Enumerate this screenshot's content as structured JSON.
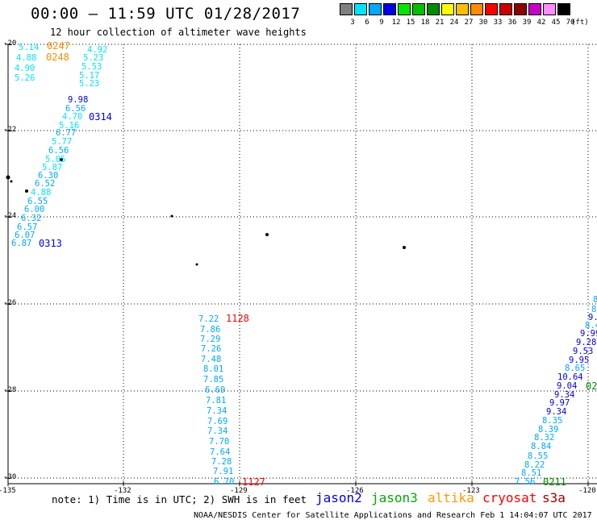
{
  "header": {
    "title": "00:00 — 11:59 UTC 01/28/2017",
    "subtitle": "12 hour collection of altimeter wave heights"
  },
  "color_scale": {
    "labels": [
      "3",
      "6",
      "9",
      "12",
      "15",
      "18",
      "21",
      "24",
      "27",
      "30",
      "33",
      "36",
      "39",
      "42",
      "45",
      "70"
    ],
    "colors": [
      "#7f7f7f",
      "#00e5ff",
      "#00a8ff",
      "#0000e6",
      "#00e600",
      "#00bf00",
      "#008c00",
      "#ffff00",
      "#ffbf00",
      "#ff8c00",
      "#ff0000",
      "#c80000",
      "#8c0000",
      "#c800c8",
      "#ff8cff",
      "#000000"
    ],
    "unit": "(ft)"
  },
  "map": {
    "lat_labels": [
      "-20",
      "-22",
      "-24",
      "-26",
      "-28",
      "-30"
    ],
    "lon_labels": [
      "-135",
      "-132",
      "-129",
      "-126",
      "-123",
      "-120"
    ],
    "tracks": [
      {
        "id": "north-pass",
        "values": [
          {
            "text": "5.14",
            "color": "#00e5ff"
          },
          {
            "text": "4.92",
            "color": "#00e5ff"
          },
          {
            "text": "4.88",
            "color": "#00e5ff"
          },
          {
            "text": "5.23",
            "color": "#00e5ff"
          },
          {
            "text": "4.90",
            "color": "#00e5ff"
          },
          {
            "text": "5.53",
            "color": "#00e5ff"
          },
          {
            "text": "5.26",
            "color": "#00e5ff"
          },
          {
            "text": "5.17",
            "color": "#00e5ff"
          },
          {
            "text": "5.23",
            "color": "#00e5ff"
          }
        ],
        "times": [
          {
            "text": "0247",
            "color": "#ff8c00"
          },
          {
            "text": "0248",
            "color": "#ff8c00"
          }
        ]
      },
      {
        "id": "jason2-0314",
        "values": [
          {
            "text": "9.98",
            "color": "#0000e6"
          },
          {
            "text": "6.56",
            "color": "#00a8ff"
          },
          {
            "text": "4.70",
            "color": "#00e5ff"
          },
          {
            "text": "5.16",
            "color": "#00e5ff"
          },
          {
            "text": "6.77",
            "color": "#00a8ff"
          },
          {
            "text": "5.77",
            "color": "#00e5ff"
          },
          {
            "text": "6.56",
            "color": "#00a8ff"
          },
          {
            "text": "5.05",
            "color": "#00e5ff"
          },
          {
            "text": "5.87",
            "color": "#00e5ff"
          },
          {
            "text": "6.30",
            "color": "#00a8ff"
          },
          {
            "text": "6.52",
            "color": "#00a8ff"
          },
          {
            "text": "4.88",
            "color": "#00e5ff"
          },
          {
            "text": "6.55",
            "color": "#00a8ff"
          },
          {
            "text": "6.00",
            "color": "#00a8ff"
          },
          {
            "text": "6.32",
            "color": "#00a8ff"
          },
          {
            "text": "6.57",
            "color": "#00a8ff"
          },
          {
            "text": "6.07",
            "color": "#00a8ff"
          },
          {
            "text": "6.87",
            "color": "#00a8ff"
          }
        ],
        "times": [
          {
            "text": "0314",
            "color": "#0000e6"
          },
          {
            "text": "0313",
            "color": "#0000e6"
          }
        ]
      },
      {
        "id": "cryosat-1128",
        "values": [
          {
            "text": "7.22",
            "color": "#00a8ff"
          },
          {
            "text": "7.86",
            "color": "#00a8ff"
          },
          {
            "text": "7.29",
            "color": "#00a8ff"
          },
          {
            "text": "7.26",
            "color": "#00a8ff"
          },
          {
            "text": "7.48",
            "color": "#00a8ff"
          },
          {
            "text": "8.01",
            "color": "#00a8ff"
          },
          {
            "text": "7.85",
            "color": "#00a8ff"
          },
          {
            "text": "6.69",
            "color": "#00a8ff"
          },
          {
            "text": "7.81",
            "color": "#00a8ff"
          },
          {
            "text": "7.34",
            "color": "#00a8ff"
          },
          {
            "text": "7.69",
            "color": "#00a8ff"
          },
          {
            "text": "7.34",
            "color": "#00a8ff"
          },
          {
            "text": "7.70",
            "color": "#00a8ff"
          },
          {
            "text": "7.64",
            "color": "#00a8ff"
          },
          {
            "text": "7.28",
            "color": "#00a8ff"
          },
          {
            "text": "7.91",
            "color": "#00a8ff"
          },
          {
            "text": "6.70",
            "color": "#00a8ff"
          }
        ],
        "times": [
          {
            "text": "1128",
            "color": "#ff0000"
          },
          {
            "text": "1127",
            "color": "#ff0000"
          }
        ]
      },
      {
        "id": "jason3-east",
        "values": [
          {
            "text": "8",
            "color": "#00a8ff"
          },
          {
            "text": "8",
            "color": "#00a8ff"
          },
          {
            "text": "9.",
            "color": "#0000e6"
          },
          {
            "text": "8.4",
            "color": "#00a8ff"
          },
          {
            "text": "9.99",
            "color": "#0000e6"
          },
          {
            "text": "9.28",
            "color": "#0000e6"
          },
          {
            "text": "9.53",
            "color": "#0000e6"
          },
          {
            "text": "9.95",
            "color": "#0000e6"
          },
          {
            "text": "8.65",
            "color": "#00a8ff"
          },
          {
            "text": "10.64",
            "color": "#0000e6"
          },
          {
            "text": "9.04",
            "color": "#0000e6"
          },
          {
            "text": "9.34",
            "color": "#0000e6"
          },
          {
            "text": "9.97",
            "color": "#0000e6"
          },
          {
            "text": "9.34",
            "color": "#0000e6"
          },
          {
            "text": "8.35",
            "color": "#00a8ff"
          },
          {
            "text": "8.39",
            "color": "#00a8ff"
          },
          {
            "text": "8.32",
            "color": "#00a8ff"
          },
          {
            "text": "8.84",
            "color": "#00a8ff"
          },
          {
            "text": "8.55",
            "color": "#00a8ff"
          },
          {
            "text": "8.22",
            "color": "#00a8ff"
          },
          {
            "text": "8.51",
            "color": "#00a8ff"
          },
          {
            "text": "7.56",
            "color": "#00a8ff"
          }
        ],
        "times": [
          {
            "text": "02",
            "color": "#008c00"
          },
          {
            "text": "0211",
            "color": "#008c00"
          }
        ]
      }
    ]
  },
  "footer": {
    "note": "note: 1) Time is in UTC; 2) SWH is in feet",
    "legend": [
      {
        "label": "jason2",
        "color": "#0000e6"
      },
      {
        "label": "jason3",
        "color": "#00aa00"
      },
      {
        "label": "altika",
        "color": "#ff9900"
      },
      {
        "label": "cryosat",
        "color": "#ff0000"
      },
      {
        "label": "s3a",
        "color": "#990000"
      }
    ],
    "credit": "NOAA/NESDIS Center for Satellite Applications and Research   Feb  1 14:04:07 UTC 2017"
  }
}
